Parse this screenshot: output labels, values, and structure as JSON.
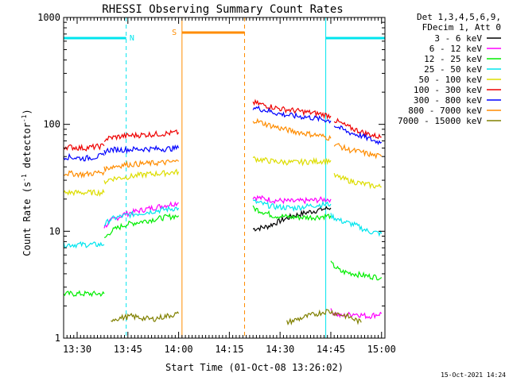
{
  "chart_data": {
    "type": "line",
    "title": "RHESSI Observing Summary Count Rates",
    "xlabel": "Start Time (01-Oct-08 13:26:02)",
    "ylabel_main": "Count Rate (s",
    "ylabel_sup1": "-1",
    "ylabel_mid": " detector",
    "ylabel_sup2": "-1",
    "ylabel_end": ")",
    "y_scale": "log",
    "ylim": [
      1,
      1000
    ],
    "xlim_minutes_from_1326": [
      0,
      95
    ],
    "x_ticks": [
      {
        "label": "13:30",
        "minute": 4
      },
      {
        "label": "13:45",
        "minute": 19
      },
      {
        "label": "14:00",
        "minute": 34
      },
      {
        "label": "14:15",
        "minute": 49
      },
      {
        "label": "14:30",
        "minute": 64
      },
      {
        "label": "14:45",
        "minute": 79
      },
      {
        "label": "15:00",
        "minute": 94
      }
    ],
    "y_ticks": [
      {
        "label": "1",
        "value": 1
      },
      {
        "label": "10",
        "value": 10
      },
      {
        "label": "100",
        "value": 100
      },
      {
        "label": "1000",
        "value": 1000
      }
    ],
    "legend": {
      "placement": "right",
      "header": [
        "Det 1,3,4,5,6,9,",
        "FDecim 1, Att 0"
      ],
      "entries": [
        {
          "label": "3 - 6 keV",
          "color": "#000000"
        },
        {
          "label": "6 - 12 keV",
          "color": "#ff00ff"
        },
        {
          "label": "12 - 25 keV",
          "color": "#00ee00"
        },
        {
          "label": "25 - 50 keV",
          "color": "#00e5ee"
        },
        {
          "label": "50 - 100 keV",
          "color": "#dddd00"
        },
        {
          "label": "100 - 300 keV",
          "color": "#ee0000"
        },
        {
          "label": "300 - 800 keV",
          "color": "#0000ff"
        },
        {
          "label": "800 - 7000 keV",
          "color": "#ff8c00"
        },
        {
          "label": "7000 - 15000 keV",
          "color": "#808000"
        }
      ]
    },
    "annotations": [
      {
        "text": "N",
        "color": "#00e5ee"
      },
      {
        "text": "S",
        "color": "#ff8c00"
      }
    ],
    "series": [
      {
        "name": "3 - 6 keV",
        "color": "#000000",
        "segments": [
          [
            [
              56,
              10.5
            ],
            [
              60,
              11
            ],
            [
              64,
              12.5
            ],
            [
              68,
              14
            ],
            [
              72,
              15
            ],
            [
              76,
              16
            ],
            [
              79,
              16.5
            ]
          ]
        ]
      },
      {
        "name": "6 - 12 keV",
        "color": "#ff00ff",
        "segments": [
          [
            [
              12,
              11
            ],
            [
              14,
              12.5
            ],
            [
              18,
              14.5
            ],
            [
              24,
              16
            ],
            [
              30,
              17.5
            ],
            [
              34,
              18.5
            ]
          ],
          [
            [
              56,
              21
            ],
            [
              62,
              19.5
            ],
            [
              68,
              19
            ],
            [
              74,
              19.5
            ],
            [
              79,
              20
            ]
          ],
          [
            [
              79,
              1.8
            ],
            [
              82,
              1.6
            ],
            [
              86,
              1.7
            ],
            [
              90,
              1.6
            ],
            [
              94,
              1.7
            ]
          ]
        ]
      },
      {
        "name": "12 - 25 keV",
        "color": "#00ee00",
        "segments": [
          [
            [
              0,
              2.6
            ],
            [
              12,
              2.6
            ]
          ],
          [
            [
              12,
              8.5
            ],
            [
              14,
              10
            ],
            [
              18,
              11.5
            ],
            [
              24,
              12.5
            ],
            [
              30,
              13.5
            ],
            [
              34,
              14
            ]
          ],
          [
            [
              56,
              16.5
            ],
            [
              62,
              14
            ],
            [
              68,
              13.5
            ],
            [
              74,
              13.5
            ],
            [
              79,
              14
            ]
          ],
          [
            [
              79,
              5
            ],
            [
              82,
              4.2
            ],
            [
              86,
              4
            ],
            [
              90,
              3.8
            ],
            [
              94,
              3.7
            ]
          ]
        ]
      },
      {
        "name": "25 - 50 keV",
        "color": "#00e5ee",
        "segments": [
          [
            [
              0,
              7.5
            ],
            [
              6,
              7.5
            ],
            [
              12,
              7.5
            ]
          ],
          [
            [
              12,
              11.5
            ],
            [
              14,
              13
            ],
            [
              18,
              14
            ],
            [
              24,
              15
            ],
            [
              30,
              16
            ],
            [
              34,
              16.5
            ]
          ],
          [
            [
              56,
              19
            ],
            [
              62,
              17
            ],
            [
              68,
              16.5
            ],
            [
              74,
              17.5
            ],
            [
              79,
              18
            ]
          ],
          [
            [
              79,
              14
            ],
            [
              82,
              12.5
            ],
            [
              86,
              11.5
            ],
            [
              90,
              10
            ],
            [
              94,
              9.5
            ]
          ]
        ]
      },
      {
        "name": "50 - 100 keV",
        "color": "#dddd00",
        "segments": [
          [
            [
              0,
              23
            ],
            [
              6,
              23
            ],
            [
              12,
              23
            ]
          ],
          [
            [
              12,
              29
            ],
            [
              14,
              31
            ],
            [
              18,
              32
            ],
            [
              24,
              34
            ],
            [
              30,
              35
            ],
            [
              34,
              36
            ]
          ],
          [
            [
              56,
              48
            ],
            [
              62,
              45
            ],
            [
              68,
              44
            ],
            [
              74,
              45
            ],
            [
              79,
              46
            ]
          ],
          [
            [
              80,
              33
            ],
            [
              84,
              30
            ],
            [
              88,
              28
            ],
            [
              92,
              26.5
            ],
            [
              94,
              26
            ]
          ]
        ]
      },
      {
        "name": "100 - 300 keV",
        "color": "#ee0000",
        "segments": [
          [
            [
              0,
              62
            ],
            [
              6,
              60
            ],
            [
              12,
              63
            ]
          ],
          [
            [
              12,
              72
            ],
            [
              14,
              75
            ],
            [
              18,
              78
            ],
            [
              24,
              80
            ],
            [
              30,
              82
            ],
            [
              34,
              84
            ]
          ],
          [
            [
              56,
              160
            ],
            [
              60,
              150
            ],
            [
              64,
              140
            ],
            [
              68,
              135
            ],
            [
              72,
              130
            ],
            [
              76,
              125
            ],
            [
              79,
              120
            ]
          ],
          [
            [
              80,
              110
            ],
            [
              84,
              95
            ],
            [
              88,
              85
            ],
            [
              92,
              78
            ],
            [
              94,
              76
            ]
          ]
        ]
      },
      {
        "name": "300 - 800 keV",
        "color": "#0000ff",
        "segments": [
          [
            [
              0,
              50
            ],
            [
              6,
              48
            ],
            [
              12,
              51
            ]
          ],
          [
            [
              12,
              56
            ],
            [
              14,
              58
            ],
            [
              18,
              58
            ],
            [
              24,
              59
            ],
            [
              30,
              59
            ],
            [
              34,
              60
            ]
          ],
          [
            [
              56,
              145
            ],
            [
              60,
              135
            ],
            [
              64,
              125
            ],
            [
              68,
              120
            ],
            [
              72,
              117
            ],
            [
              76,
              112
            ],
            [
              79,
              108
            ]
          ],
          [
            [
              80,
              98
            ],
            [
              84,
              85
            ],
            [
              88,
              78
            ],
            [
              92,
              70
            ],
            [
              94,
              68
            ]
          ]
        ]
      },
      {
        "name": "800 - 7000 keV",
        "color": "#ff8c00",
        "segments": [
          [
            [
              0,
              35
            ],
            [
              6,
              34
            ],
            [
              12,
              36
            ]
          ],
          [
            [
              12,
              38
            ],
            [
              14,
              40
            ],
            [
              18,
              42
            ],
            [
              24,
              43
            ],
            [
              30,
              44
            ],
            [
              34,
              45
            ]
          ],
          [
            [
              56,
              110
            ],
            [
              60,
              100
            ],
            [
              64,
              92
            ],
            [
              68,
              86
            ],
            [
              72,
              82
            ],
            [
              76,
              78
            ],
            [
              79,
              74
            ]
          ],
          [
            [
              80,
              66
            ],
            [
              84,
              58
            ],
            [
              88,
              55
            ],
            [
              92,
              51
            ],
            [
              94,
              50
            ]
          ]
        ]
      },
      {
        "name": "7000 - 15000 keV",
        "color": "#808000",
        "segments": [
          [
            [
              14,
              1.5
            ],
            [
              20,
              1.6
            ],
            [
              26,
              1.5
            ],
            [
              34,
              1.7
            ]
          ],
          [
            [
              66,
              1.4
            ],
            [
              72,
              1.6
            ],
            [
              78,
              1.8
            ],
            [
              84,
              1.6
            ],
            [
              88,
              1.4
            ]
          ]
        ]
      }
    ],
    "intervals": [
      {
        "label": "N",
        "type": "saa_night",
        "color": "#00e5ee",
        "ranges": [
          [
            0,
            18.5
          ],
          [
            77.5,
            95
          ]
        ]
      },
      {
        "label": "S",
        "type": "saa",
        "color": "#ff8c00",
        "ranges": [
          [
            35,
            53.5
          ]
        ]
      }
    ]
  },
  "footer_date": "15-Oct-2021 14:24"
}
